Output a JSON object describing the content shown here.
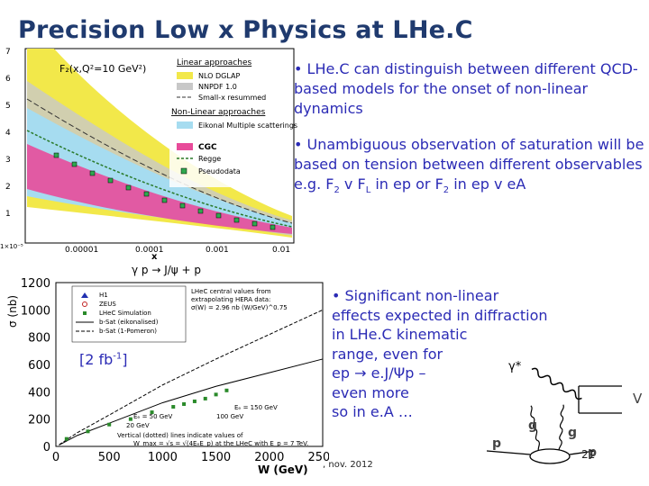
{
  "slide": {
    "title": "Precision Low x Physics at LHe.C",
    "bullet1": "• LHe.C can distinguish between different QCD-based models for the onset of non-linear dynamics",
    "bullet2_a": "• Unambiguous observation of saturation will be based on tension between different observables e.g. F",
    "bullet2_b": " v F",
    "bullet2_c": " in ep or F",
    "bullet2_d": " in ep v eA",
    "sub2": "2",
    "subL": "L",
    "bullet3_lines": [
      "• Significant non-linear",
      "effects expected in diffraction",
      "in LHe.C kinematic",
      "range, even for",
      "ep ",
      " e.J/Ψp –",
      "even more",
      "so in e.A …"
    ],
    "ref_a": "[2 fb",
    "ref_sup": "-1",
    "ref_b": "]",
    "footer": ", nov. 2012",
    "page": "21"
  },
  "chart_top": {
    "title": "F₂(x,Q²=10 GeV²)",
    "legend_lin_header": "Linear approaches",
    "legend_nonlin_header": "Non-Linear approaches",
    "legend": [
      "NLO DGLAP",
      "NNPDF 1.0",
      "Small-x resummed",
      "Eikonal Multiple scatterings",
      "CGC",
      "Regge",
      "Pseudodata"
    ],
    "colors": {
      "nlo": "#f2e84a",
      "nnpdf": "#c8c8c8",
      "eikonal": "#a6dcf0",
      "cgc": "#e84b9a",
      "pseudo": "#2fa84f"
    },
    "xlabel": "x",
    "yticks": [
      "7",
      "6",
      "5",
      "4",
      "3",
      "2",
      "1",
      "1×10⁻⁵"
    ],
    "xticks": [
      "0.00001",
      "0.0001",
      "0.001",
      "0.01"
    ]
  },
  "chart_data": {
    "type": "scatter",
    "title": "γ p → J/ψ + p",
    "xlabel": "W  (GeV)",
    "ylabel": "σ (nb)",
    "xlim": [
      0,
      2500
    ],
    "ylim": [
      0,
      1200
    ],
    "xticks": [
      "0",
      "500",
      "1000",
      "1500",
      "2000",
      "2500"
    ],
    "yticks": [
      "0",
      "200",
      "400",
      "600",
      "800",
      "1000",
      "1200"
    ],
    "legend": [
      "H1",
      "ZEUS",
      "LHeC Simulation",
      "b-Sat (eikonalised)",
      "b-Sat (1-Pomeron)"
    ],
    "legend_text": [
      "LHeC central values from",
      "extrapolating HERA data:",
      "σ(W) = 2.96 nb (W/GeV)^0.75"
    ],
    "annotations": [
      "Eₑ = 150 GeV",
      "Eₑ = 50 GeV",
      "100 GeV",
      "20 GeV",
      "Vertical (dotted) lines indicate values of",
      "W_max = √s = √(4EₑE_p) at the LHeC with E_p = 7 TeV."
    ],
    "series": [
      {
        "name": "b-Sat (eikonalised)",
        "x": [
          30,
          200,
          500,
          1000,
          1500,
          2000,
          2500
        ],
        "values": [
          10,
          80,
          170,
          320,
          440,
          540,
          640
        ]
      },
      {
        "name": "b-Sat (1-Pomeron)",
        "x": [
          30,
          200,
          500,
          1000,
          1500,
          2000,
          2500
        ],
        "values": [
          12,
          100,
          230,
          450,
          640,
          820,
          1000
        ]
      },
      {
        "name": "LHeC Simulation",
        "x": [
          100,
          300,
          500,
          700,
          900,
          1100,
          1200,
          1300,
          1400,
          1500,
          1600
        ],
        "values": [
          55,
          110,
          160,
          200,
          250,
          290,
          310,
          330,
          350,
          380,
          410
        ]
      }
    ]
  },
  "diagram": {
    "gamma": "γ*",
    "v": "V",
    "g1": "g",
    "g2": "g",
    "p1": "p",
    "p2": "p"
  }
}
